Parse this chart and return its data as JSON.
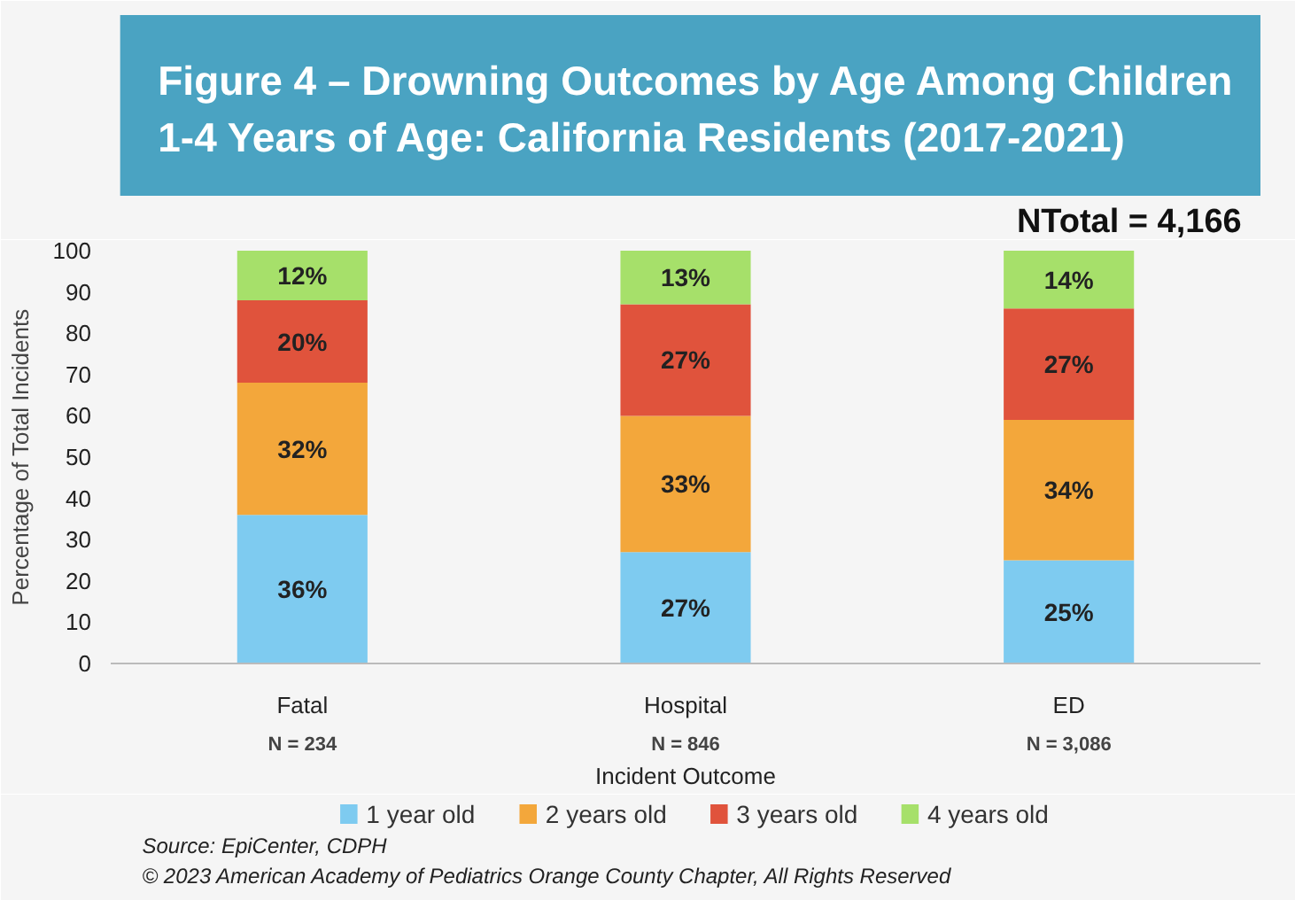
{
  "chart_data": {
    "type": "bar",
    "stacked": true,
    "title": "Figure 4 – Drowning Outcomes by Age Among Children 1-4 Years of Age: California Residents (2017-2021)",
    "xlabel": "Incident Outcome",
    "ylabel": "Percentage of Total Incidents",
    "categories": [
      "Fatal",
      "Hospital",
      "ED"
    ],
    "series": [
      {
        "name": "1 year old",
        "color": "#7ecbf0",
        "values": [
          36,
          27,
          25
        ],
        "value_labels": [
          "36%",
          "27%",
          "25%"
        ]
      },
      {
        "name": "2 years old",
        "color": "#f3a73b",
        "values": [
          32,
          33,
          34
        ],
        "value_labels": [
          "32%",
          "33%",
          "34%"
        ]
      },
      {
        "name": "3 years old",
        "color": "#e0533c",
        "values": [
          20,
          27,
          27
        ],
        "value_labels": [
          "20%",
          "27%",
          "27%"
        ]
      },
      {
        "name": "4 years old",
        "color": "#a6e06a",
        "values": [
          12,
          13,
          14
        ],
        "value_labels": [
          "12%",
          "13%",
          "14%"
        ]
      }
    ],
    "ylim": [
      0,
      100
    ],
    "yticks": [
      0,
      10,
      20,
      30,
      40,
      50,
      60,
      70,
      80,
      90,
      100
    ],
    "grid": false,
    "legend": "bottom",
    "annotations": [
      "NTotal = 4,166",
      "N = 234",
      "N = 846",
      "N = 3,086",
      "Source: EpiCenter, CDPH",
      "© 2023 American Academy of Pediatrics Orange County Chapter, All Rights Reserved"
    ]
  }
}
